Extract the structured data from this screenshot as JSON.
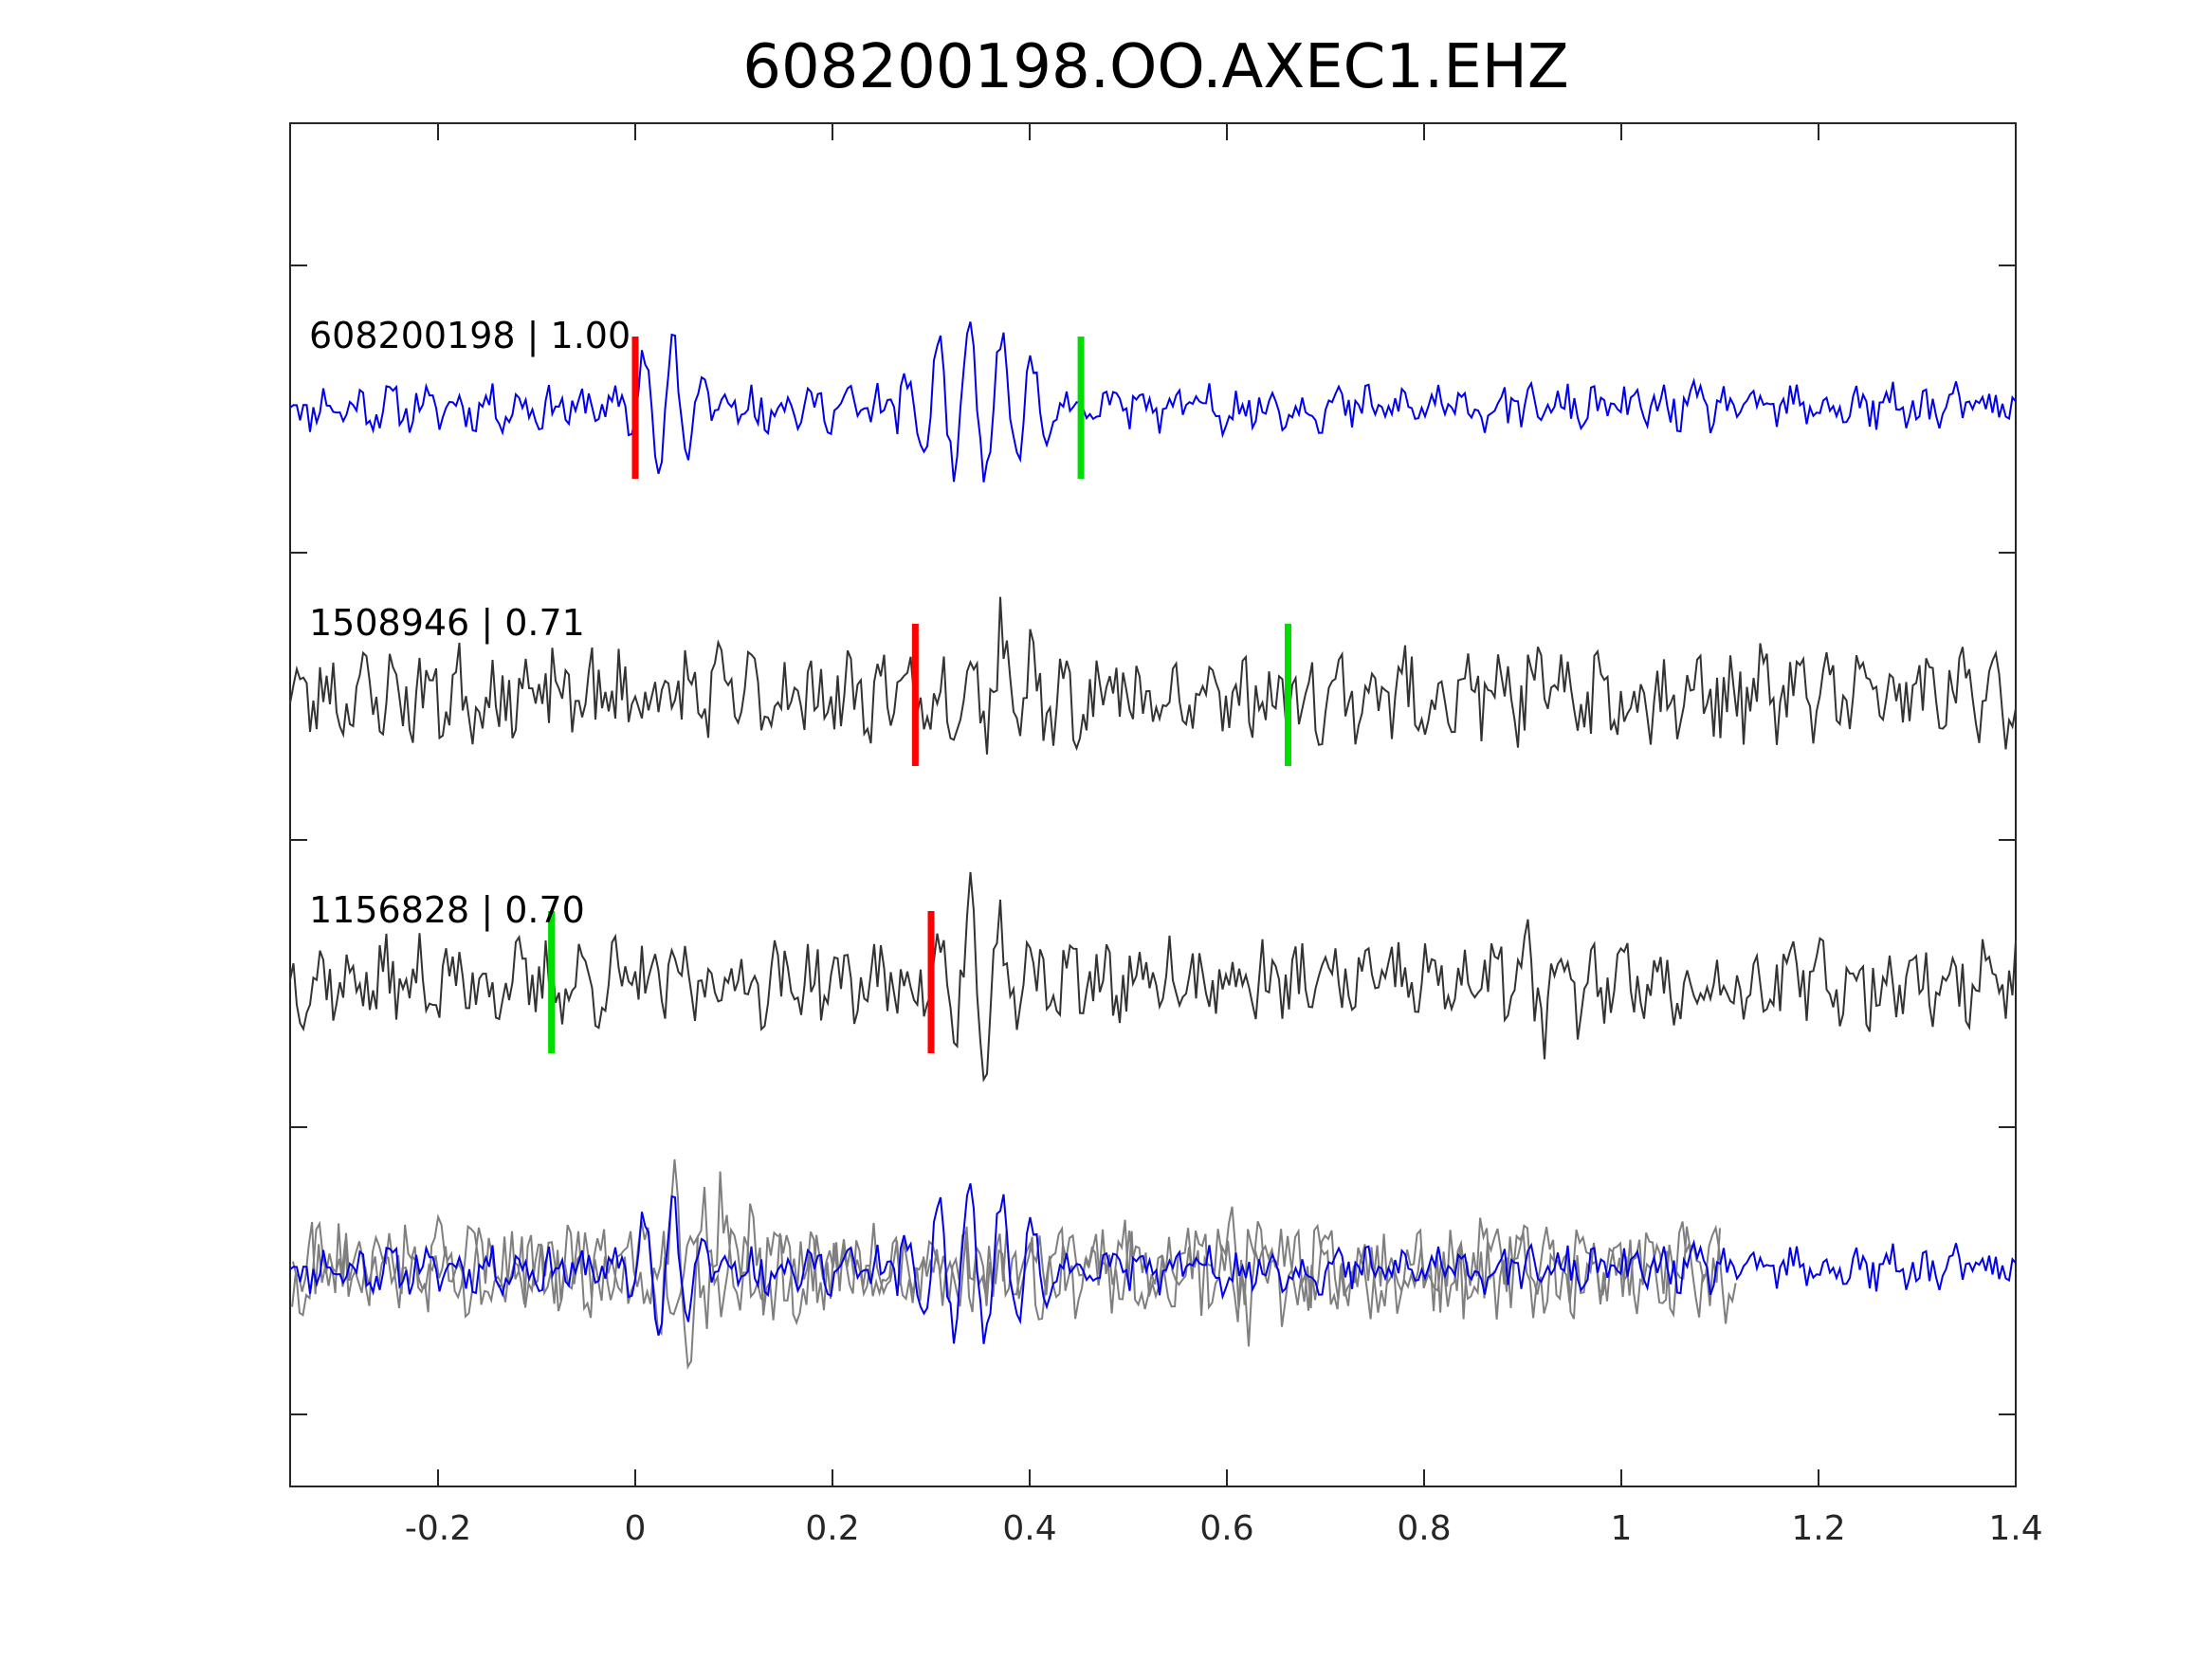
{
  "chart_data": {
    "type": "line",
    "title": "608200198.OO.AXEC1.EHZ",
    "xlabel": "",
    "ylabel": "",
    "xlim": [
      -0.35,
      1.4
    ],
    "xticks": [
      -0.2,
      0,
      0.2,
      0.4,
      0.6,
      0.8,
      1,
      1.2,
      1.4
    ],
    "xtick_labels": [
      "-0.2",
      "0",
      "0.2",
      "0.4",
      "0.6",
      "0.8",
      "1",
      "1.2",
      "1.4"
    ],
    "y_track_ticks": 5,
    "grid": false,
    "colors": {
      "master": "#0000ee",
      "trace": "#333333",
      "overlay": "#7f7f7f",
      "p_pick": "#ff0000",
      "s_pick": "#00dd00",
      "axis": "#262626"
    },
    "traces": [
      {
        "label": "608200198 | 1.00",
        "color": "master",
        "p_pick": 0.0,
        "s_pick": 0.452,
        "bursts": [
          {
            "center": 0.0,
            "start": -0.01,
            "end": 0.14,
            "amp": 0.95,
            "period": 0.03
          },
          {
            "center": 0.33,
            "start": 0.26,
            "end": 0.56,
            "amp": 1.0,
            "period": 0.032
          }
        ],
        "noise": 0.12,
        "seed": 11
      },
      {
        "label": "1508946 | 0.71",
        "color": "trace",
        "p_pick": 0.284,
        "s_pick": 0.662,
        "bursts": [
          {
            "center": 0.33,
            "start": 0.28,
            "end": 0.62,
            "amp": 1.0,
            "period": 0.032
          }
        ],
        "noise": 0.25,
        "seed": 23
      },
      {
        "label": "1156828 | 0.70",
        "color": "trace",
        "p_pick": 0.3,
        "s_pick": -0.085,
        "bursts": [
          {
            "center": 0.33,
            "start": 0.3,
            "end": 0.46,
            "amp": 1.0,
            "period": 0.03
          },
          {
            "center": 0.97,
            "start": 0.88,
            "end": 1.02,
            "amp": 0.5,
            "period": 0.04
          }
        ],
        "noise": 0.22,
        "seed": 37
      }
    ]
  }
}
